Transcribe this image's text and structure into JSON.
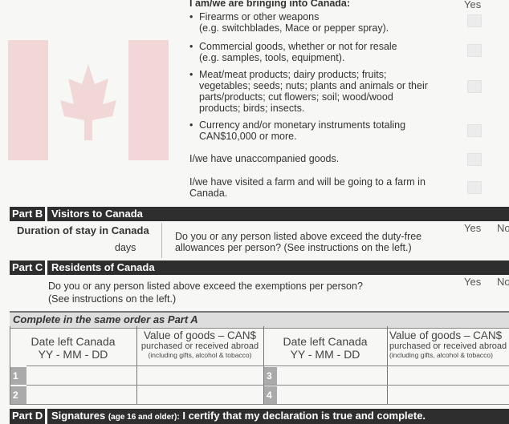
{
  "part_a": {
    "heading": "I am/we are bringing into Canada:",
    "yes_label": "Yes",
    "items": [
      {
        "lines": [
          "Firearms or other weapons",
          "(e.g. switchblades, Mace or pepper spray)."
        ]
      },
      {
        "lines": [
          "Commercial goods, whether or not for resale",
          "(e.g. samples, tools, equipment)."
        ]
      },
      {
        "lines": [
          "Meat/meat products; dairy products; fruits;",
          "vegetables; seeds; nuts; plants and animals or their",
          "parts/products; cut flowers; soil; wood/wood",
          "products; birds; insects."
        ]
      },
      {
        "lines": [
          "Currency and/or monetary instruments totaling",
          "CAN$10,000 or more."
        ]
      }
    ],
    "unaccompanied": "I/we have unaccompanied goods.",
    "farm_lines": [
      "I/we have visited a farm and will be going to a farm in",
      "Canada."
    ]
  },
  "part_b": {
    "tag": "Part B",
    "title": "Visitors to Canada",
    "duration_label": "Duration of stay in Canada",
    "days_label": "days",
    "question_lines": [
      "Do you or any person listed above exceed the duty-free",
      "allowances per person? (See instructions on the left.)"
    ],
    "yes": "Yes",
    "no": "No"
  },
  "part_c": {
    "tag": "Part C",
    "title": "Residents of Canada",
    "question_lines": [
      "Do you or any person listed above exceed the exemptions per person?",
      "(See instructions on the left.)"
    ],
    "yes": "Yes",
    "no": "No",
    "table_caption": "Complete in the same order as Part A",
    "col_date": [
      "Date left Canada",
      "YY - MM - DD"
    ],
    "col_value": [
      "Value of goods – CAN$",
      "purchased or received abroad",
      "(including gifts, alcohol & tobacco)"
    ],
    "row_numbers": [
      "1",
      "2",
      "3",
      "4"
    ]
  },
  "part_d": {
    "tag": "Part D",
    "title": "Signatures",
    "title_small": "(age 16 and older):",
    "statement": "I certify that my declaration is true and complete."
  }
}
